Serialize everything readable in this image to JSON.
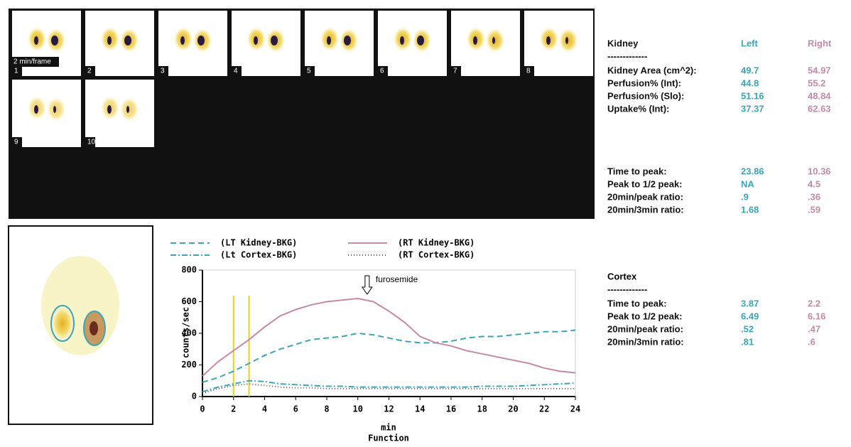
{
  "frames": {
    "labels": [
      "1",
      "2",
      "3",
      "4",
      "5",
      "6",
      "7",
      "8",
      "9",
      "10"
    ],
    "frame_rate": "2 min/frame"
  },
  "chart_data": {
    "type": "line",
    "ylabel": "counts/sec",
    "xlabel": "min",
    "caption": "Function",
    "annotation": {
      "text": "furosemide",
      "x": 10.6
    },
    "markers": [
      2,
      3
    ],
    "x": [
      0,
      1,
      2,
      3,
      4,
      5,
      6,
      7,
      8,
      9,
      10,
      11,
      12,
      13,
      14,
      15,
      16,
      17,
      18,
      19,
      20,
      21,
      22,
      23,
      24
    ],
    "series": [
      {
        "name": "(LT Kidney-BKG)",
        "color": "#3aa6b9",
        "values": [
          90,
          120,
          160,
          210,
          260,
          300,
          330,
          360,
          370,
          380,
          400,
          390,
          370,
          350,
          340,
          340,
          350,
          370,
          380,
          380,
          390,
          400,
          410,
          410,
          420
        ]
      },
      {
        "name": "(RT Kidney-BKG)",
        "color": "#c48aa8",
        "values": [
          130,
          220,
          290,
          360,
          440,
          510,
          550,
          580,
          600,
          610,
          620,
          600,
          540,
          470,
          380,
          340,
          320,
          290,
          270,
          250,
          230,
          210,
          180,
          160,
          150
        ]
      },
      {
        "name": "(Lt Cortex-BKG)",
        "color": "#3aa6b9",
        "values": [
          30,
          60,
          80,
          100,
          95,
          80,
          75,
          70,
          65,
          65,
          60,
          60,
          60,
          60,
          60,
          60,
          60,
          60,
          65,
          65,
          65,
          70,
          75,
          80,
          85
        ]
      },
      {
        "name": "(RT Cortex-BKG)",
        "color": "#555555",
        "values": [
          20,
          50,
          70,
          80,
          70,
          60,
          55,
          55,
          50,
          50,
          50,
          50,
          50,
          50,
          50,
          50,
          50,
          50,
          50,
          50,
          50,
          50,
          50,
          50,
          50
        ]
      }
    ],
    "xlim": [
      0,
      24
    ],
    "xticks": [
      0,
      2,
      4,
      6,
      8,
      10,
      12,
      14,
      16,
      18,
      20,
      22,
      24
    ],
    "ylim": [
      0,
      800
    ],
    "yticks": [
      0,
      200,
      400,
      600,
      800
    ]
  },
  "kidney": {
    "header": [
      "Kidney",
      "Left",
      "Right"
    ],
    "separator": "-------------",
    "rows": [
      [
        "Kidney Area (cm^2):",
        "49.7",
        "54.97"
      ],
      [
        "Perfusion% (Int):",
        "44.8",
        "55.2"
      ],
      [
        "Perfusion% (Slo):",
        "51.16",
        "48.84"
      ],
      [
        "Uptake% (Int):",
        "37.37",
        "62.63"
      ]
    ],
    "rows2": [
      [
        "Time to peak:",
        "23.86",
        "10.36"
      ],
      [
        "Peak to 1/2 peak:",
        "NA",
        "4.5"
      ],
      [
        "20min/peak ratio:",
        ".9",
        ".36"
      ],
      [
        "20min/3min ratio:",
        "1.68",
        ".59"
      ]
    ]
  },
  "cortex": {
    "title": "Cortex",
    "separator": "-------------",
    "rows": [
      [
        "Time to peak:",
        "3.87",
        "2.2"
      ],
      [
        "Peak to 1/2 peak:",
        "6.49",
        "6.16"
      ],
      [
        "20min/peak ratio:",
        ".52",
        ".47"
      ],
      [
        "20min/3min ratio:",
        ".81",
        ".6"
      ]
    ]
  }
}
